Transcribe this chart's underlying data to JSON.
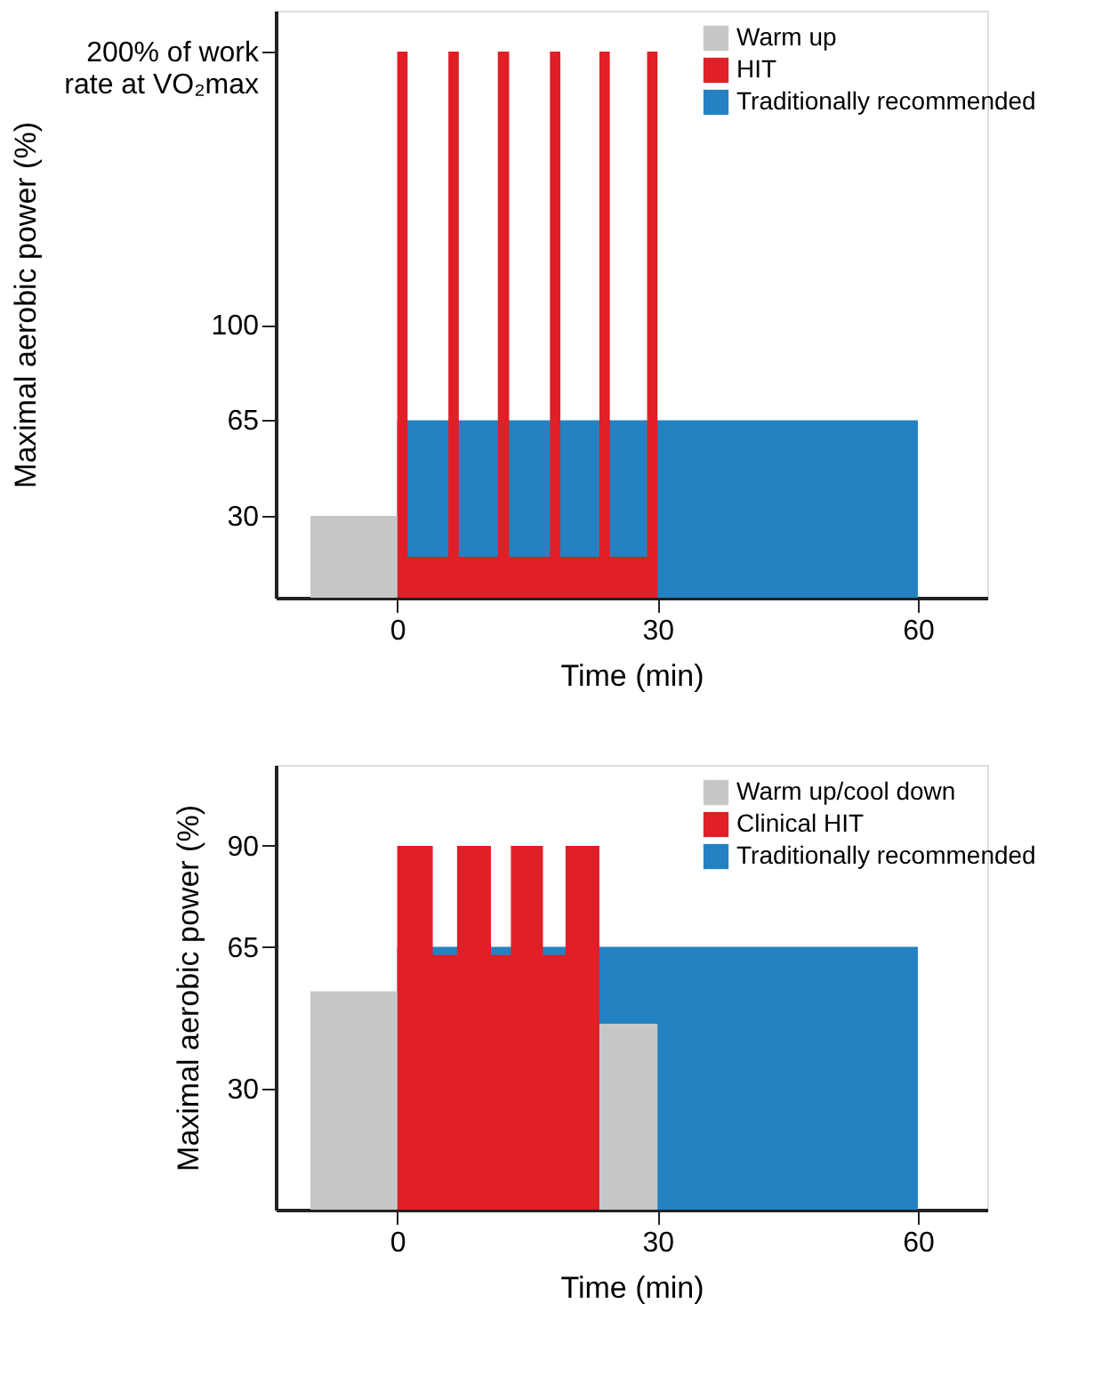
{
  "chart_data": [
    {
      "type": "area",
      "xlabel": "Time (min)",
      "ylabel": "Maximal aerobic power (%)",
      "xlim": [
        -14,
        68
      ],
      "xticks": [
        0,
        30,
        60
      ],
      "ylim": [
        0,
        215
      ],
      "yticks": [
        30,
        65,
        100,
        {
          "value": 200,
          "label": "200% of work rate at VO₂max"
        }
      ],
      "legend": "top right",
      "series": [
        {
          "name": "Warm up",
          "color": "#c6c7c9",
          "x": [
            -10,
            -10,
            0,
            0
          ],
          "values": [
            0,
            30,
            30,
            0
          ]
        },
        {
          "name": "HIT",
          "color": "#e01f26",
          "x": [
            0,
            0,
            1.2,
            1.2,
            5.9,
            5.9,
            7.1,
            7.1,
            11.6,
            11.6,
            12.9,
            12.9,
            17.6,
            17.6,
            18.8,
            18.8,
            23.3,
            23.3,
            24.5,
            24.5,
            28.8,
            28.8,
            30,
            30
          ],
          "values": [
            0,
            200,
            200,
            15,
            15,
            200,
            200,
            15,
            15,
            200,
            200,
            15,
            15,
            200,
            200,
            15,
            15,
            200,
            200,
            15,
            15,
            200,
            200,
            0
          ]
        },
        {
          "name": "Traditionally recommended",
          "color": "#2582c2",
          "x": [
            0,
            0,
            60,
            60
          ],
          "values": [
            0,
            65,
            65,
            0
          ]
        }
      ]
    },
    {
      "type": "area",
      "xlabel": "Time (min)",
      "ylabel": "Maximal aerobic power (%)",
      "xlim": [
        -14,
        68
      ],
      "xticks": [
        0,
        30,
        60
      ],
      "ylim": [
        0,
        110
      ],
      "yticks": [
        30,
        65,
        90
      ],
      "legend": "top right",
      "series": [
        {
          "name": "Warm up/cool down",
          "color": "#c6c7c9",
          "x": [
            -10,
            -10,
            0,
            0,
            23.3,
            23.3,
            30,
            30
          ],
          "values": [
            0,
            54,
            54,
            0,
            0,
            46,
            46,
            0
          ]
        },
        {
          "name": "Clinical HIT",
          "color": "#e01f26",
          "x": [
            0,
            0,
            4.1,
            4.1,
            6.9,
            6.9,
            10.8,
            10.8,
            13.1,
            13.1,
            16.8,
            16.8,
            19.4,
            19.4,
            23.3,
            23.3
          ],
          "values": [
            0,
            90,
            90,
            63,
            63,
            90,
            90,
            63,
            63,
            90,
            90,
            63,
            63,
            90,
            90,
            0
          ]
        },
        {
          "name": "Traditionally recommended",
          "color": "#2582c2",
          "x": [
            0,
            0,
            60,
            60
          ],
          "values": [
            0,
            65,
            65,
            0
          ]
        }
      ]
    }
  ]
}
